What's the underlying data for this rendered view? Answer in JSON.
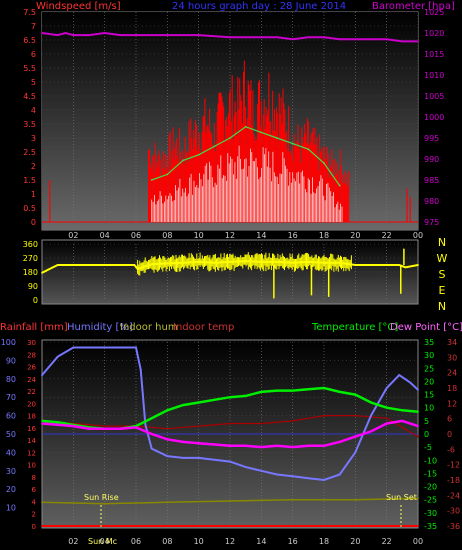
{
  "header": {
    "left_label": "Windspeed [m/s]",
    "title": "24 hours graph day : 28 June 2014",
    "right_label": "Barometer [hpa]"
  },
  "lower_header": {
    "rainfall": "Rainfall [mm]",
    "humidity": "Humidity [%]",
    "indoor_hum": "Indoor hum",
    "indoor_temp": "Indoor temp",
    "temperature": "Temperature [°C]",
    "dew_point": "Dew Point [°C]"
  },
  "annotations": {
    "sun_rise": "Sun Rise",
    "sun_set": "Sun Set",
    "sun_mc": "Sun Mc"
  },
  "colors": {
    "wind_gust": "#ff0000",
    "wind_avg": "#44dd44",
    "wind_min": "#ffffff",
    "barometer": "#cc00cc",
    "direction": "#ffff00",
    "temperature": "#00ee00",
    "dew_point": "#ff00ff",
    "humidity": "#7777ff",
    "indoor_temp": "#aa0000",
    "indoor_hum": "#888800",
    "rainfall": "#ff0000"
  },
  "chart_data": [
    {
      "type": "bar",
      "title": "24 hours graph day : 28 June 2014",
      "x_ticks": [
        "02",
        "04",
        "06",
        "08",
        "10",
        "12",
        "14",
        "16",
        "18",
        "20",
        "22",
        "00"
      ],
      "y_left_label": "Windspeed [m/s]",
      "y_left_ticks": [
        "0",
        "0.5",
        "1",
        "1.5",
        "2",
        "2.5",
        "3",
        "3.5",
        "4",
        "4.5",
        "5",
        "5.5",
        "6",
        "6.5",
        "7",
        "7.5"
      ],
      "y_left_range": [
        0,
        7.5
      ],
      "y_right_label": "Barometer [hpa]",
      "y_right_ticks": [
        "975",
        "980",
        "985",
        "990",
        "995",
        "1000",
        "1005",
        "1010",
        "1015",
        "1020",
        "1025"
      ],
      "y_right_range": [
        975,
        1025
      ],
      "series": [
        {
          "name": "Windspeed gust",
          "hours": [
            0.5,
            6.8,
            7.5,
            8,
            8.5,
            9,
            9.5,
            10,
            10.5,
            11,
            11.5,
            12,
            12.5,
            13,
            13.5,
            14,
            14.5,
            15,
            15.5,
            16,
            16.5,
            17,
            17.5,
            18,
            18.5,
            19,
            19.5,
            23.3
          ],
          "values": [
            1.5,
            3.3,
            2.8,
            3.1,
            3.6,
            3.2,
            3.9,
            4.2,
            4.6,
            4.0,
            5.1,
            5.4,
            5.2,
            6.2,
            5.0,
            5.6,
            5.9,
            5.3,
            4.8,
            3.9,
            3.5,
            3.8,
            3.3,
            3.0,
            2.6,
            2.7,
            1.9,
            1.2
          ]
        },
        {
          "name": "Windspeed average",
          "hours": [
            7,
            8,
            9,
            10,
            11,
            12,
            13,
            14,
            15,
            16,
            17,
            18,
            19
          ],
          "values": [
            1.5,
            1.7,
            2.2,
            2.4,
            2.7,
            3.0,
            3.4,
            3.2,
            3.0,
            2.8,
            2.6,
            2.1,
            1.3
          ]
        },
        {
          "name": "Windspeed minimum",
          "hours": [
            7,
            8,
            9,
            10,
            11,
            12,
            13,
            14,
            15,
            16,
            17,
            18,
            19
          ],
          "values": [
            1.0,
            1.3,
            1.7,
            2.0,
            2.3,
            2.6,
            2.9,
            2.8,
            2.6,
            2.4,
            2.1,
            1.6,
            0.8
          ]
        },
        {
          "name": "Barometer",
          "hours": [
            0,
            1,
            1.5,
            2,
            3,
            4,
            5,
            6,
            8,
            10,
            12,
            14,
            15,
            16,
            17,
            18,
            19,
            20,
            21,
            22,
            23,
            24
          ],
          "values": [
            1020,
            1019.5,
            1020,
            1019.5,
            1019.5,
            1020,
            1019.5,
            1019.5,
            1019.5,
            1019.5,
            1019,
            1019,
            1019,
            1018.5,
            1019,
            1019,
            1018.5,
            1018.5,
            1018.5,
            1018.5,
            1018,
            1018
          ]
        }
      ]
    },
    {
      "type": "line",
      "x_ticks": [
        "02",
        "04",
        "06",
        "08",
        "10",
        "12",
        "14",
        "16",
        "18",
        "20",
        "22",
        "00"
      ],
      "y_ticks": [
        "0",
        "90",
        "180",
        "270",
        "360"
      ],
      "y_range": [
        0,
        360
      ],
      "right_labels": [
        "N",
        "W",
        "S",
        "E",
        "N"
      ],
      "series": [
        {
          "name": "Wind direction",
          "hours": [
            0,
            0.5,
            1,
            2,
            3,
            4,
            5,
            5.9,
            6.1,
            7,
            8,
            9,
            10,
            11,
            12,
            13,
            14,
            15,
            16,
            17,
            18,
            19,
            20,
            21,
            22,
            22.8,
            23.2,
            24
          ],
          "values": [
            175,
            200,
            225,
            225,
            225,
            225,
            225,
            225,
            200,
            230,
            235,
            240,
            245,
            240,
            245,
            250,
            245,
            245,
            240,
            245,
            240,
            240,
            225,
            225,
            225,
            225,
            210,
            225
          ]
        }
      ]
    },
    {
      "type": "line",
      "x_ticks": [
        "02",
        "04",
        "06",
        "08",
        "10",
        "12",
        "14",
        "16",
        "18",
        "20",
        "22",
        "00"
      ],
      "y_humidity_ticks": [
        "10",
        "20",
        "30",
        "40",
        "50",
        "60",
        "70",
        "80",
        "90",
        "100"
      ],
      "y_humidity_range": [
        0,
        100
      ],
      "y_rain_ticks": [
        "0",
        "2",
        "4",
        "6",
        "8",
        "10",
        "12",
        "14",
        "16",
        "18",
        "20",
        "22",
        "24",
        "26",
        "28",
        "30"
      ],
      "y_rain_range": [
        0,
        30
      ],
      "y_temp_ticks": [
        "-35",
        "-30",
        "-25",
        "-20",
        "-15",
        "-10",
        "-5",
        "0",
        "5",
        "10",
        "15",
        "20",
        "25",
        "30",
        "35"
      ],
      "y_temp_range": [
        -35,
        35
      ],
      "y_indoor_ticks": [
        "-36",
        "-30",
        "-24",
        "-18",
        "-12",
        "-6",
        "0",
        "6",
        "12",
        "18",
        "24",
        "30",
        "34"
      ],
      "series": [
        {
          "name": "Humidity",
          "hours": [
            0,
            1,
            2,
            3,
            4,
            5,
            6,
            6.3,
            6.6,
            7,
            8,
            9,
            10,
            11,
            12,
            13,
            14,
            15,
            16,
            17,
            18,
            19,
            20,
            21,
            22,
            22.8,
            23.5,
            24
          ],
          "values": [
            82,
            92,
            97,
            97,
            97,
            97,
            97,
            85,
            55,
            42,
            38,
            37,
            37,
            36,
            35,
            32,
            30,
            28,
            27,
            26,
            25,
            28,
            40,
            60,
            75,
            82,
            78,
            74
          ]
        },
        {
          "name": "Temperature",
          "hours": [
            0,
            1,
            2,
            3,
            4,
            5,
            6,
            7,
            8,
            9,
            10,
            11,
            12,
            13,
            14,
            15,
            16,
            17,
            18,
            19,
            20,
            21,
            22,
            23,
            24
          ],
          "values": [
            5,
            4.5,
            3.5,
            2.5,
            2,
            2,
            3,
            6,
            9,
            11,
            12,
            13,
            14,
            14.5,
            16,
            16.5,
            16.5,
            17,
            17.5,
            16,
            15,
            12,
            10,
            9,
            8.5
          ]
        },
        {
          "name": "Dew Point",
          "hours": [
            0,
            1,
            2,
            3,
            4,
            5,
            6,
            7,
            8,
            9,
            10,
            11,
            12,
            13,
            14,
            15,
            16,
            17,
            18,
            19,
            20,
            21,
            22,
            23,
            24
          ],
          "values": [
            4,
            3.5,
            3,
            2,
            2,
            2,
            2.5,
            0,
            -2,
            -3,
            -3.5,
            -4,
            -4.5,
            -4.5,
            -5,
            -4.5,
            -5,
            -4.5,
            -4.5,
            -3,
            -1,
            1,
            4,
            5,
            3
          ]
        },
        {
          "name": "Indoor temp",
          "hours": [
            0,
            2,
            4,
            6,
            8,
            10,
            12,
            14,
            16,
            18,
            20,
            22,
            24
          ],
          "values": [
            5,
            4,
            3,
            3,
            2,
            3,
            4,
            4,
            5,
            7,
            7,
            6,
            -1
          ]
        },
        {
          "name": "Indoor hum",
          "hours": [
            0,
            4,
            8,
            12,
            16,
            20,
            24
          ],
          "values": [
            -26,
            -26.5,
            -26,
            -25.5,
            -25,
            -25,
            -24.5
          ]
        },
        {
          "name": "Rainfall",
          "hours": [
            0,
            24
          ],
          "values": [
            0,
            0
          ]
        }
      ]
    }
  ]
}
